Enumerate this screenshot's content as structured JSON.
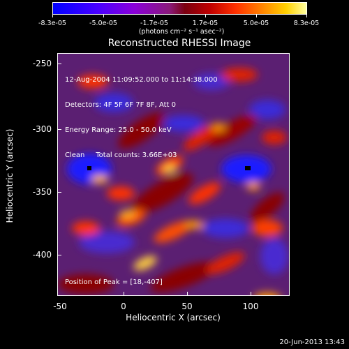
{
  "colorbar": {
    "ticks": [
      "-8.3e-05",
      "-5.0e-05",
      "-1.7e-05",
      "1.7e-05",
      "5.0e-05",
      "8.3e-05"
    ],
    "units": "(photons cm⁻² s⁻¹ asec⁻²)"
  },
  "title": "Reconstructed RHESSI Image",
  "info": {
    "time_range": "12-Aug-2004 11:09:52.000 to 11:14:38.000",
    "detectors": "Detectors: 4F 5F 6F 7F 8F, Att 0",
    "energy": "Energy Range: 25.0 - 50.0 keV",
    "method": "Clean     Total counts: 3.66E+03"
  },
  "peak_text": "Position of Peak = [18,-407]",
  "axes": {
    "xlabel": "Heliocentric X (arcsec)",
    "ylabel": "Heliocentric Y (arcsec)",
    "xticks": [
      "-50",
      "0",
      "50",
      "100"
    ],
    "yticks": [
      "-250",
      "-300",
      "-350",
      "-400"
    ]
  },
  "timestamp": "20-Jun-2013 13:43",
  "colors": {
    "background": "#000000",
    "foreground": "#ffffff"
  }
}
